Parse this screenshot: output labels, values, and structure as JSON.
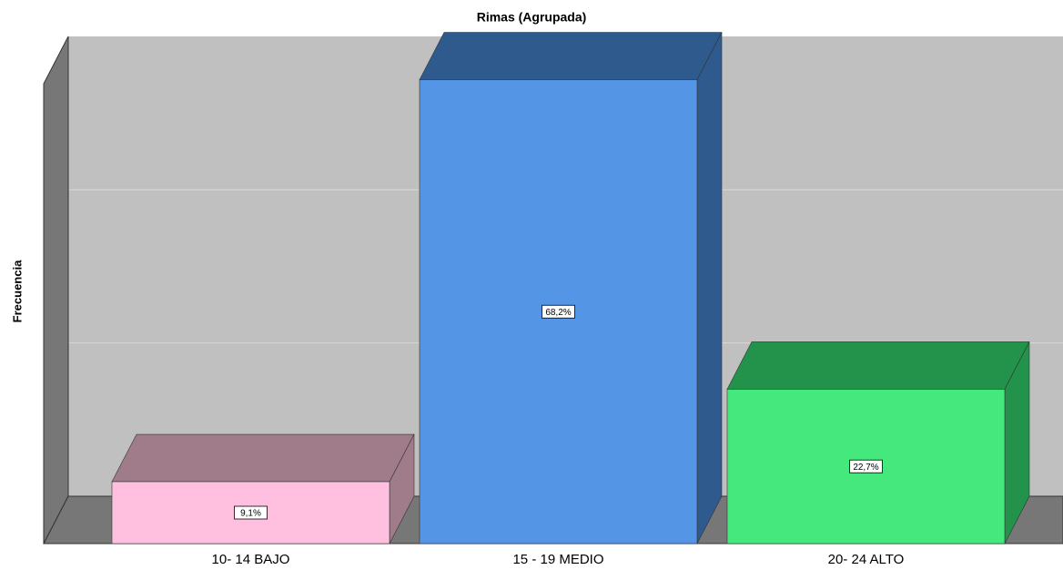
{
  "chart_data": {
    "type": "bar3d",
    "title": "Rimas (Agrupada)",
    "y_label": "Frecuencia",
    "categories": [
      "10- 14 BAJO",
      "15 - 19 MEDIO",
      "20- 24 ALTO"
    ],
    "values": [
      9.1,
      68.2,
      22.7
    ],
    "value_labels": [
      "9,1%",
      "68,2%",
      "22,7%"
    ],
    "colors": [
      "#ffc0e0",
      "#5595e5",
      "#44e87c"
    ],
    "side_colors": [
      "#a07c8a",
      "#2f5a8e",
      "#23924a"
    ],
    "ylim": [
      0,
      67.6
    ],
    "grid": true
  }
}
